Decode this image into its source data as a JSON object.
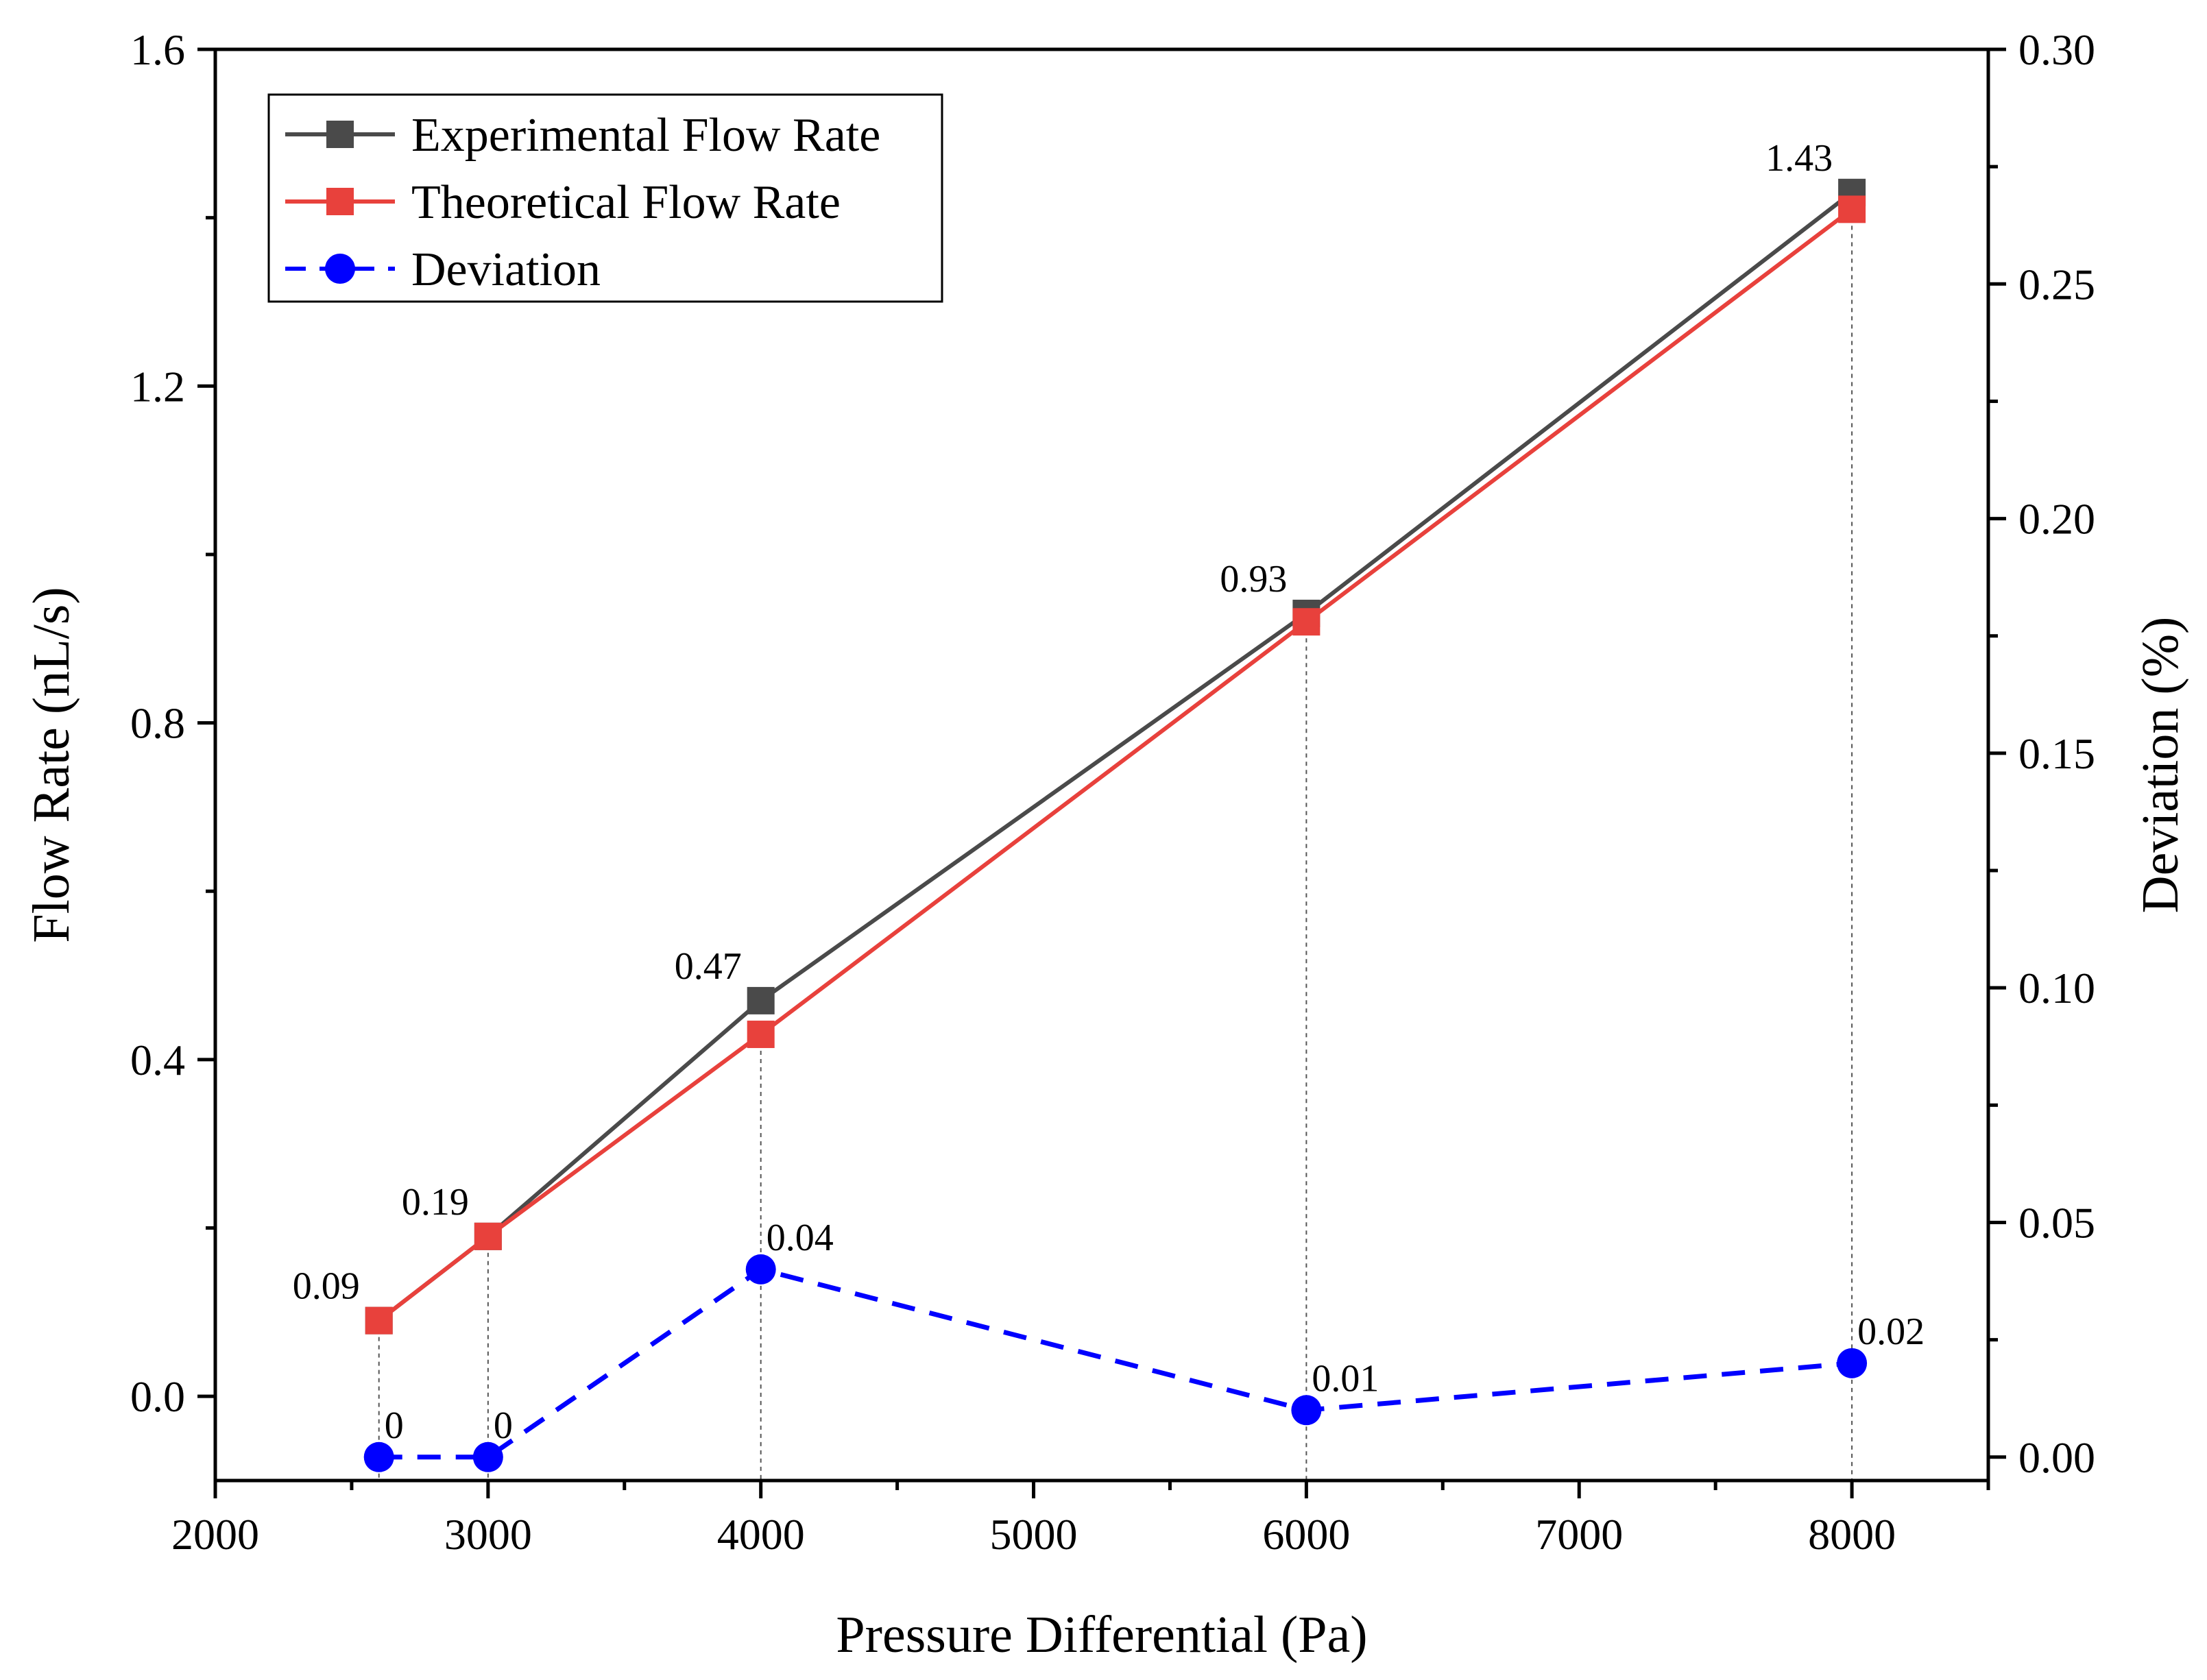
{
  "chart_data": {
    "type": "line",
    "title": "",
    "xlabel": "Pressure Differential (Pa)",
    "ylabel": "Flow Rate (nL/s)",
    "y2label": "Deviation (%)",
    "xlim": [
      2000,
      8500
    ],
    "ylim": [
      -0.1,
      1.6
    ],
    "y2lim": [
      -0.005,
      0.3
    ],
    "x_ticks": [
      2000,
      3000,
      4000,
      5000,
      6000,
      7000,
      8000
    ],
    "y_ticks": [
      "0.0",
      "0.4",
      "0.8",
      "1.2",
      "1.6"
    ],
    "y2_ticks": [
      "0.00",
      "0.05",
      "0.10",
      "0.15",
      "0.20",
      "0.25",
      "0.30"
    ],
    "grid": false,
    "legend_position": "top-left",
    "series": [
      {
        "name": "Experimental Flow Rate",
        "axis": "left",
        "color": "#4a4a4a",
        "marker": "square",
        "line_style": "solid",
        "x": [
          2600,
          3000,
          4000,
          6000,
          8000
        ],
        "values": [
          0.09,
          0.19,
          0.47,
          0.93,
          1.43
        ]
      },
      {
        "name": "Theoretical Flow Rate",
        "axis": "left",
        "color": "#e8413c",
        "marker": "square",
        "line_style": "solid",
        "x": [
          2600,
          3000,
          4000,
          6000,
          8000
        ],
        "values": [
          0.09,
          0.19,
          0.43,
          0.92,
          1.41
        ]
      },
      {
        "name": "Deviation",
        "axis": "right",
        "color": "#0000ff",
        "marker": "circle",
        "line_style": "dashed",
        "x": [
          2600,
          3000,
          4000,
          6000,
          8000
        ],
        "values": [
          0,
          0,
          0.04,
          0.01,
          0.02
        ]
      }
    ],
    "flow_labels": [
      "0.09",
      "0.19",
      "0.47",
      "0.93",
      "1.43"
    ],
    "deviation_labels": [
      "0",
      "0",
      "0.04",
      "0.01",
      "0.02"
    ]
  }
}
